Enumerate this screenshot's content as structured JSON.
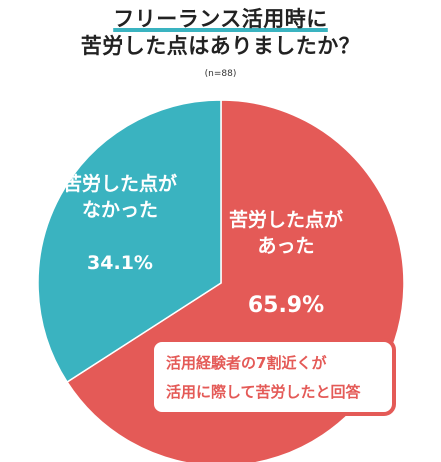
{
  "title": {
    "line1": "フリーランス活用時に",
    "line2": "苦労した点はありましたか？"
  },
  "sample_note": "(n=88)",
  "callout": {
    "line1": "活用経験者の7割近くが",
    "line2": "活用に際して苦労したと回答"
  },
  "chart_data": {
    "type": "pie",
    "title": "フリーランス活用時に苦労した点はありましたか？",
    "n": 88,
    "slices": [
      {
        "label_lines": [
          "苦労した点が",
          "あった"
        ],
        "value": 65.9,
        "value_label": "65.9%",
        "color": "#e45a57"
      },
      {
        "label_lines": [
          "苦労した点が",
          "なかった"
        ],
        "value": 34.1,
        "value_label": "34.1%",
        "color": "#3ab3c0"
      }
    ]
  }
}
